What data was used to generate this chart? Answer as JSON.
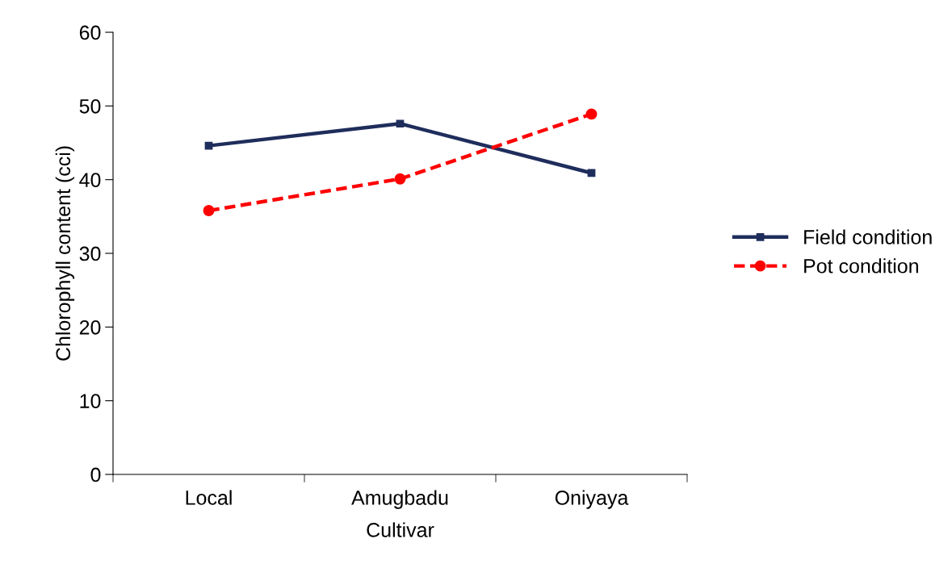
{
  "chart_data": {
    "type": "line",
    "xlabel": "Cultivar",
    "ylabel": "Chlorophyll content (cci)",
    "categories": [
      "Local",
      "Amugbadu",
      "Oniyaya"
    ],
    "series": [
      {
        "name": "Field condition",
        "color": "#1f2d5c",
        "values": [
          44.6,
          47.6,
          40.9
        ],
        "marker": "square",
        "line_style": "solid"
      },
      {
        "name": "Pot condition",
        "color": "#ff0000",
        "values": [
          35.8,
          40.1,
          48.9
        ],
        "marker": "circle",
        "line_style": "dashed"
      }
    ],
    "ylim": [
      0,
      60
    ],
    "yticks": [
      0,
      10,
      20,
      30,
      40,
      50,
      60
    ],
    "grid": false,
    "legend": "right"
  }
}
